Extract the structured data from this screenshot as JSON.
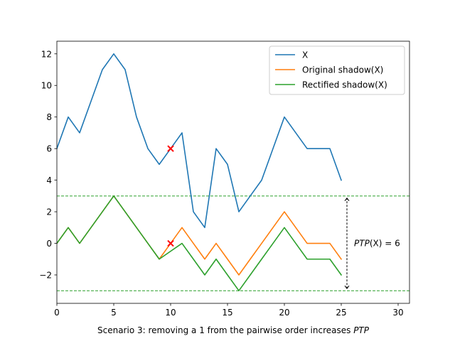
{
  "chart_data": {
    "type": "line",
    "xlabel": "Scenario 3: removing a 1 from the pairwise order increases PTP",
    "xlabel_parts": {
      "prefix": "Scenario 3: removing a 1 from the pairwise order increases ",
      "italic": "PTP"
    },
    "ylabel": "",
    "xlim": [
      0,
      31
    ],
    "ylim": [
      -3.8,
      12.8
    ],
    "xticks": [
      0,
      5,
      10,
      15,
      20,
      25,
      30
    ],
    "yticks": [
      -2,
      0,
      2,
      4,
      6,
      8,
      10,
      12
    ],
    "grid": false,
    "legend_position": "top-right",
    "series": [
      {
        "name": "X",
        "color": "#1f77b4",
        "x": [
          0,
          1,
          2,
          3,
          4,
          5,
          6,
          7,
          8,
          9,
          10,
          11,
          12,
          13,
          14,
          15,
          16,
          17,
          18,
          19,
          20,
          21,
          22,
          23,
          24,
          25
        ],
        "y": [
          6,
          8,
          7,
          9,
          11,
          12,
          11,
          8,
          6,
          5,
          6,
          7,
          2,
          1,
          6,
          5,
          2,
          3,
          4,
          6,
          8,
          7,
          6,
          6,
          6,
          4
        ]
      },
      {
        "name": "Original shadow(X)",
        "color": "#ff7f0e",
        "x": [
          0,
          1,
          2,
          3,
          4,
          5,
          6,
          7,
          8,
          9,
          10,
          11,
          12,
          13,
          14,
          15,
          16,
          17,
          18,
          19,
          20,
          21,
          22,
          23,
          24,
          25
        ],
        "y": [
          0,
          1,
          0,
          1,
          2,
          3,
          2,
          1,
          0,
          -1,
          0,
          1,
          0,
          -1,
          0,
          -1,
          -2,
          -1,
          0,
          1,
          2,
          1,
          0,
          0,
          0,
          -1
        ]
      },
      {
        "name": "Rectified shadow(X)",
        "color": "#2ca02c",
        "x": [
          0,
          1,
          2,
          3,
          4,
          5,
          6,
          7,
          8,
          9,
          10,
          11,
          12,
          13,
          14,
          15,
          16,
          17,
          18,
          19,
          20,
          21,
          22,
          23,
          24,
          25
        ],
        "y": [
          0,
          1,
          0,
          1,
          2,
          3,
          2,
          1,
          0,
          -1,
          -0.5,
          0,
          -1,
          -2,
          -1,
          -2,
          -3,
          -2,
          -1,
          0,
          1,
          0,
          -1,
          -1,
          -1,
          -2
        ]
      }
    ],
    "hlines": [
      {
        "y": 3,
        "color": "#2ca02c",
        "style": "dashed"
      },
      {
        "y": -3,
        "color": "#2ca02c",
        "style": "dashed"
      }
    ],
    "markers": [
      {
        "x": 10,
        "y": 6,
        "symbol": "x",
        "color": "#ff0000"
      },
      {
        "x": 10,
        "y": 0,
        "symbol": "x",
        "color": "#ff0000"
      }
    ],
    "annotation": {
      "text_italic": "PTP",
      "text_rest": "(X) = 6",
      "arrow_x": 25.5,
      "arrow_from": -3,
      "arrow_to": 3
    }
  }
}
